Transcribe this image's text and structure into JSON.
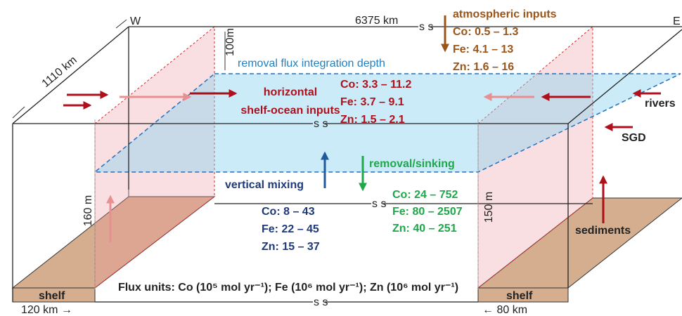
{
  "labels": {
    "west": "W",
    "east": "E",
    "width": "6375 km",
    "depth_across": "1110 km",
    "top_layer": "100m",
    "integration_depth": "removal flux integration depth",
    "left_height": "160 m",
    "right_height": "150 m",
    "left_shelf": "shelf",
    "right_shelf": "shelf",
    "left_shelf_width": "120 km →",
    "right_shelf_width": "← 80 km",
    "units": "Flux units: Co (10⁵ mol yr⁻¹); Fe (10⁶ mol yr⁻¹); Zn (10⁶ mol yr⁻¹)",
    "break_marks": [
      "s s",
      "s s",
      "s s",
      "s s"
    ]
  },
  "atmospheric": {
    "title": "atmospheric inputs",
    "lines": [
      "Co: 0.5 – 1.3",
      "Fe: 4.1 – 13",
      "Zn: 1.6 – 16"
    ]
  },
  "horizontal": {
    "title": [
      "horizontal",
      "shelf-ocean inputs"
    ],
    "lines": [
      "Co: 3.3 – 11.2",
      "Fe: 3.7 – 9.1",
      "Zn: 1.5 – 2.1"
    ]
  },
  "sources": {
    "rivers": "rivers",
    "sgd": "SGD",
    "sediments": "sediments"
  },
  "removal": {
    "title": "removal/sinking",
    "lines": [
      "Co: 24 – 752",
      "Fe: 80 – 2507",
      "Zn: 40 – 251"
    ]
  },
  "mixing": {
    "title": "vertical mixing",
    "lines": [
      "Co: 8 – 43",
      "Fe: 22 – 45",
      "Zn: 15 – 37"
    ]
  }
}
